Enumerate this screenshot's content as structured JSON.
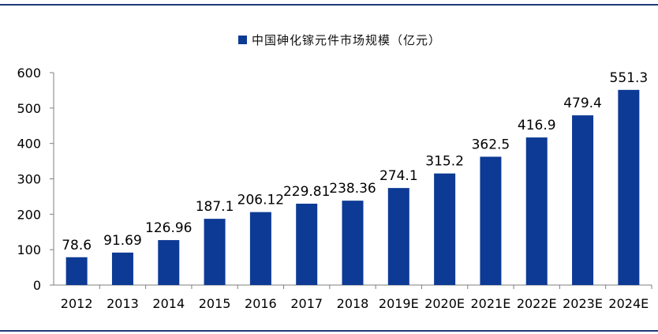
{
  "chart_data": {
    "type": "bar",
    "title": "",
    "xlabel": "",
    "ylabel": "",
    "legend": "top-center",
    "grid": false,
    "ylim": [
      0,
      600
    ],
    "yticks": [
      "0",
      "100",
      "200",
      "300",
      "400",
      "500",
      "600"
    ],
    "categories": [
      "2012",
      "2013",
      "2014",
      "2015",
      "2016",
      "2017",
      "2018",
      "2019E",
      "2020E",
      "2021E",
      "2022E",
      "2023E",
      "2024E"
    ],
    "series": [
      {
        "name": "中国砷化镓元件市场规模（亿元）",
        "color": "#0d3a94",
        "values": [
          78.6,
          91.69,
          126.96,
          187.1,
          206.12,
          229.81,
          238.36,
          274.1,
          315.2,
          362.5,
          416.9,
          479.4,
          551.3
        ],
        "labels": [
          "78.6",
          "91.69",
          "126.96",
          "187.1",
          "206.12",
          "229.81",
          "238.36",
          "274.1",
          "315.2",
          "362.5",
          "416.9",
          "479.4",
          "551.3"
        ]
      }
    ]
  }
}
